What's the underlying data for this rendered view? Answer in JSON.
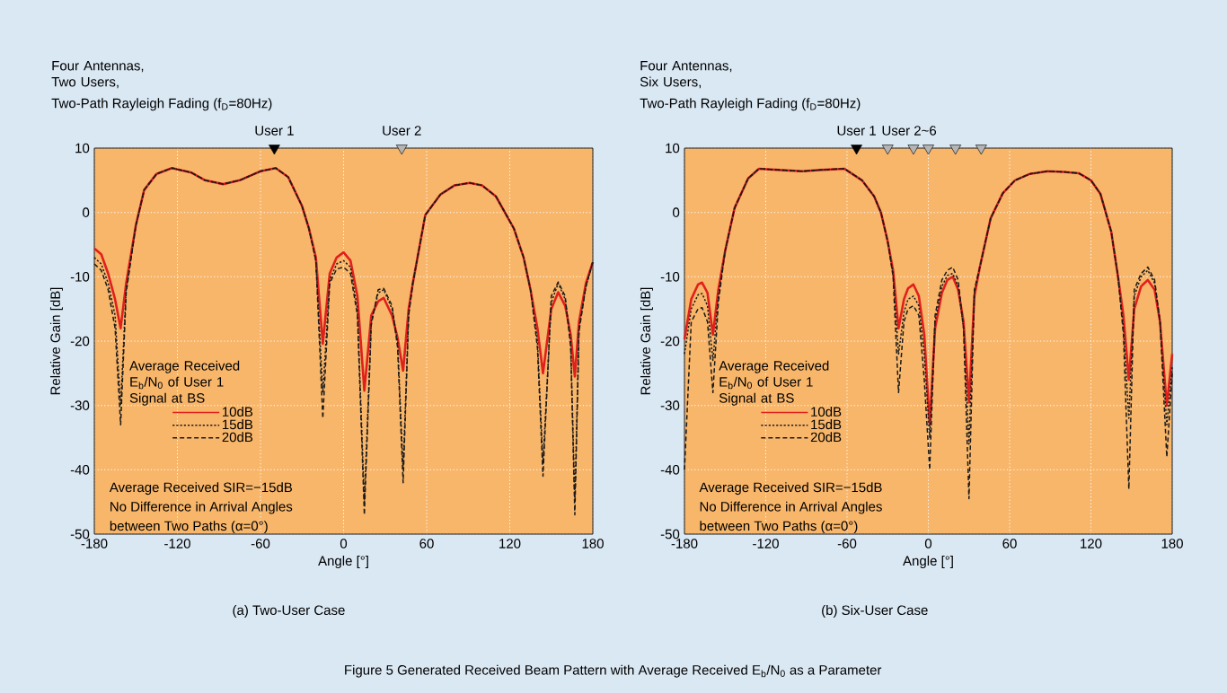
{
  "chart_data": [
    {
      "type": "line",
      "title": "Four Antennas, Two Users,",
      "subtitle": "Two-Path Rayleigh Fading (f$_{D}$=80Hz)",
      "xlabel": "Angle [°]",
      "ylabel": "Relative Gain [dB]",
      "legend_title": "Average Received E$_{b}$/N$_{0}$ of User 1 Signal at BS",
      "annotations": [
        "Average Received SIR=−15dB",
        "No Difference in Arrival Angles",
        "between Two Paths (α=0°)",
        "(a)   Two-User Case",
        "Figure 5   Generated Received Beam Pattern with Average Received E$_{b}$/N$_{0}$ as a Parameter"
      ],
      "x": [
        -180,
        -175,
        -170,
        -165,
        -161,
        -157,
        -150,
        -144,
        -135,
        -124,
        -110,
        -100,
        -87,
        -75,
        -60,
        -49,
        -40,
        -30,
        -25,
        -20,
        -15,
        -10,
        -5,
        0,
        5,
        10,
        15,
        20,
        25,
        29,
        35,
        39,
        43,
        47,
        50,
        59,
        70,
        80,
        91,
        100,
        110,
        123,
        130,
        135,
        140,
        144,
        150,
        155,
        160,
        164,
        167,
        170,
        175,
        180
      ],
      "series": [
        {
          "name": "10dB",
          "color": "#e0201c",
          "line_style": "solid",
          "values": [
            -5.6,
            -6.5,
            -9.5,
            -13.5,
            -18,
            -11,
            -2,
            3.5,
            6,
            6.9,
            6.2,
            5,
            4.4,
            5,
            6.4,
            6.9,
            5.5,
            1,
            -2.5,
            -7,
            -20.4,
            -9.5,
            -7,
            -6.2,
            -7.5,
            -13,
            -27.7,
            -16,
            -13.8,
            -13.3,
            -16,
            -19.5,
            -24.6,
            -15,
            -11,
            -0.4,
            2.8,
            4.2,
            4.6,
            4.2,
            2.5,
            -2.5,
            -7,
            -12,
            -18,
            -25,
            -15,
            -12.4,
            -14.5,
            -19,
            -25.5,
            -17,
            -11,
            -7.7
          ]
        },
        {
          "name": "15dB",
          "color": "#1a1a1a",
          "line_style": "dotted",
          "values": [
            -7,
            -8,
            -11,
            -16,
            -30,
            -12,
            -2,
            3.5,
            6,
            6.9,
            6.2,
            5,
            4.4,
            5,
            6.4,
            6.9,
            5.5,
            1,
            -2.5,
            -7.5,
            -28,
            -10.5,
            -8,
            -7.5,
            -8.5,
            -15,
            -45,
            -17,
            -12.5,
            -12,
            -15,
            -20,
            -40,
            -15.5,
            -11,
            -0.4,
            2.8,
            4.2,
            4.6,
            4.2,
            2.5,
            -2.5,
            -7,
            -12,
            -20,
            -39,
            -14,
            -11,
            -13.5,
            -20,
            -45,
            -18,
            -11.5,
            -7.7
          ]
        },
        {
          "name": "20dB",
          "color": "#1a1a1a",
          "line_style": "dashed",
          "values": [
            -8,
            -9,
            -12,
            -18,
            -33,
            -12.5,
            -2,
            3.5,
            6,
            6.9,
            6.2,
            5,
            4.4,
            5,
            6.4,
            6.9,
            5.5,
            1,
            -2.5,
            -7.5,
            -32,
            -11,
            -8.8,
            -8.5,
            -9.5,
            -16,
            -47,
            -17.5,
            -12,
            -11.8,
            -14.5,
            -21,
            -42,
            -16,
            -11,
            -0.4,
            2.8,
            4.2,
            4.6,
            4.2,
            2.5,
            -2.5,
            -7,
            -12,
            -21,
            -41,
            -13,
            -10.8,
            -13,
            -21,
            -47,
            -18.5,
            -11.5,
            -7.7
          ]
        },
        {
          "name": "User 1",
          "type": "scatter",
          "marker": "triangle",
          "color": "#000000",
          "x": [
            -50
          ],
          "values": [
            10
          ]
        },
        {
          "name": "User 2",
          "type": "scatter",
          "marker": "triangle",
          "color": "#b4b4b4",
          "x": [
            42
          ],
          "values": [
            10
          ]
        }
      ],
      "xlim": [
        -180,
        180
      ],
      "ylim": [
        -50,
        10
      ],
      "xticks": [
        -180,
        -120,
        -60,
        0,
        60,
        120,
        180
      ],
      "yticks": [
        -50,
        -40,
        -30,
        -20,
        -10,
        0,
        10
      ],
      "grid": true,
      "legend": "bottom left"
    },
    {
      "type": "line",
      "title": "Four Antennas, Six Users,",
      "subtitle": "Two-Path Rayleigh Fading (f$_{D}$=80Hz)",
      "xlabel": "Angle [°]",
      "ylabel": "Relative Gain [dB]",
      "legend_title": "Average Received E$_{b}$/N$_{0}$ of User 1 Signal at BS",
      "annotations": [
        "Average Received SIR=−15dB",
        "No Difference in Arrival Angles",
        "between Two Paths (α=0°)",
        "(b)   Six-User Case"
      ],
      "x": [
        -180,
        -175,
        -170,
        -167,
        -163,
        -159,
        -155,
        -150,
        -143,
        -133,
        -125,
        -110,
        -93,
        -80,
        -62,
        -49,
        -40,
        -35,
        -30,
        -26,
        -22,
        -18,
        -15,
        -11,
        -7,
        -3,
        1,
        5,
        10,
        14,
        18,
        22,
        26,
        30,
        34,
        38,
        46,
        55,
        64,
        75,
        88,
        100,
        111,
        120,
        127,
        135,
        140,
        144,
        148,
        152,
        157,
        162,
        167,
        171,
        176,
        180
      ],
      "series": [
        {
          "name": "10dB",
          "color": "#e0201c",
          "line_style": "solid",
          "values": [
            -19.7,
            -13.5,
            -11.2,
            -10.9,
            -12.5,
            -19,
            -12,
            -6,
            0.7,
            5.3,
            6.8,
            6.6,
            6.4,
            6.6,
            6.8,
            5,
            2.5,
            0,
            -4.5,
            -9,
            -18,
            -13.5,
            -11.8,
            -11.2,
            -13,
            -19,
            -33,
            -18,
            -12.5,
            -10.5,
            -10,
            -12,
            -17,
            -29.5,
            -13,
            -8.5,
            -0.9,
            3,
            5,
            6,
            6.4,
            6.3,
            6.1,
            5,
            2.9,
            -3,
            -10,
            -16,
            -26,
            -15,
            -11.5,
            -10.5,
            -12,
            -17,
            -30,
            -22
          ]
        },
        {
          "name": "15dB",
          "color": "#1a1a1a",
          "line_style": "dotted",
          "values": [
            -22,
            -15,
            -12.8,
            -12.6,
            -14.5,
            -23,
            -13,
            -6,
            0.7,
            5.3,
            6.8,
            6.6,
            6.4,
            6.6,
            6.8,
            5,
            2.5,
            0,
            -4.5,
            -9.5,
            -22,
            -15.5,
            -13.5,
            -13,
            -14.5,
            -22,
            -35,
            -17,
            -11.5,
            -9.8,
            -9.5,
            -11.5,
            -18,
            -36,
            -12.5,
            -8.5,
            -0.9,
            3,
            5,
            6,
            6.4,
            6.3,
            6.1,
            5,
            2.9,
            -3,
            -10,
            -18,
            -32,
            -13,
            -10,
            -9,
            -11,
            -17,
            -33,
            -24
          ]
        },
        {
          "name": "20dB",
          "color": "#1a1a1a",
          "line_style": "dashed",
          "values": [
            -40,
            -17,
            -15,
            -14.8,
            -17,
            -28,
            -14,
            -6,
            0.7,
            5.3,
            6.8,
            6.6,
            6.4,
            6.6,
            6.8,
            5,
            2.5,
            0,
            -4.5,
            -10,
            -28,
            -17,
            -15,
            -14.5,
            -16,
            -26,
            -40,
            -16,
            -10.5,
            -9,
            -8.5,
            -10.5,
            -18,
            -44.5,
            -12,
            -8.5,
            -0.9,
            3,
            5,
            6,
            6.4,
            6.3,
            6.1,
            5,
            2.9,
            -3,
            -10,
            -19,
            -43,
            -12,
            -9.5,
            -8.5,
            -10.5,
            -17,
            -38,
            -25
          ]
        },
        {
          "name": "User 1",
          "type": "scatter",
          "marker": "triangle",
          "color": "#000000",
          "x": [
            -53
          ],
          "values": [
            10
          ]
        },
        {
          "name": "User 2~6",
          "type": "scatter",
          "marker": "triangle",
          "color": "#b4b4b4",
          "x": [
            -30,
            -11,
            0,
            20,
            39
          ],
          "values": [
            10,
            10,
            10,
            10,
            10
          ]
        }
      ],
      "xlim": [
        -180,
        180
      ],
      "ylim": [
        -50,
        10
      ],
      "xticks": [
        -180,
        -120,
        -60,
        0,
        60,
        120,
        180
      ],
      "yticks": [
        -50,
        -40,
        -30,
        -20,
        -10,
        0,
        10
      ],
      "grid": true,
      "legend": "bottom left"
    }
  ]
}
